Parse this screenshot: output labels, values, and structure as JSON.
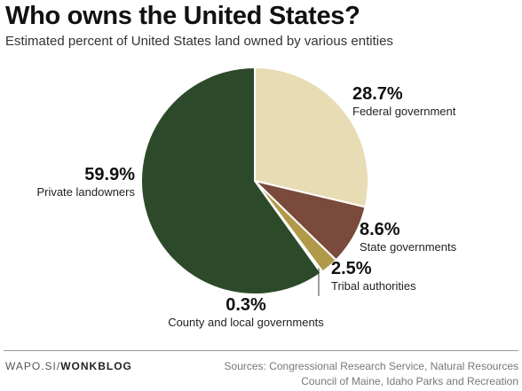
{
  "header": {
    "title": "Who owns the United States?",
    "subtitle": "Estimated percent of United States land owned by various entities"
  },
  "chart_data": {
    "type": "pie",
    "title": "Who owns the United States?",
    "subtitle": "Estimated percent of United States land owned by various entities",
    "start": "12 o'clock, clockwise",
    "slices": [
      {
        "label": "Federal government",
        "value": 28.7,
        "value_label": "28.7%",
        "color": "#e8dcb5"
      },
      {
        "label": "State governments",
        "value": 8.6,
        "value_label": "8.6%",
        "color": "#7a4a3c"
      },
      {
        "label": "Tribal authorities",
        "value": 2.5,
        "value_label": "2.5%",
        "color": "#b09a4a"
      },
      {
        "label": "County and local governments",
        "value": 0.3,
        "value_label": "0.3%",
        "color": "#d8d8d8"
      },
      {
        "label": "Private landowners",
        "value": 59.9,
        "value_label": "59.9%",
        "color": "#2c4a2a"
      }
    ]
  },
  "footer": {
    "credit_prefix": "WAPO.SI/",
    "credit_brand": "WONKBLOG",
    "sources_line1": "Sources: Congressional Research Service, Natural Resources",
    "sources_line2": "Council of Maine, Idaho Parks and Recreation"
  }
}
